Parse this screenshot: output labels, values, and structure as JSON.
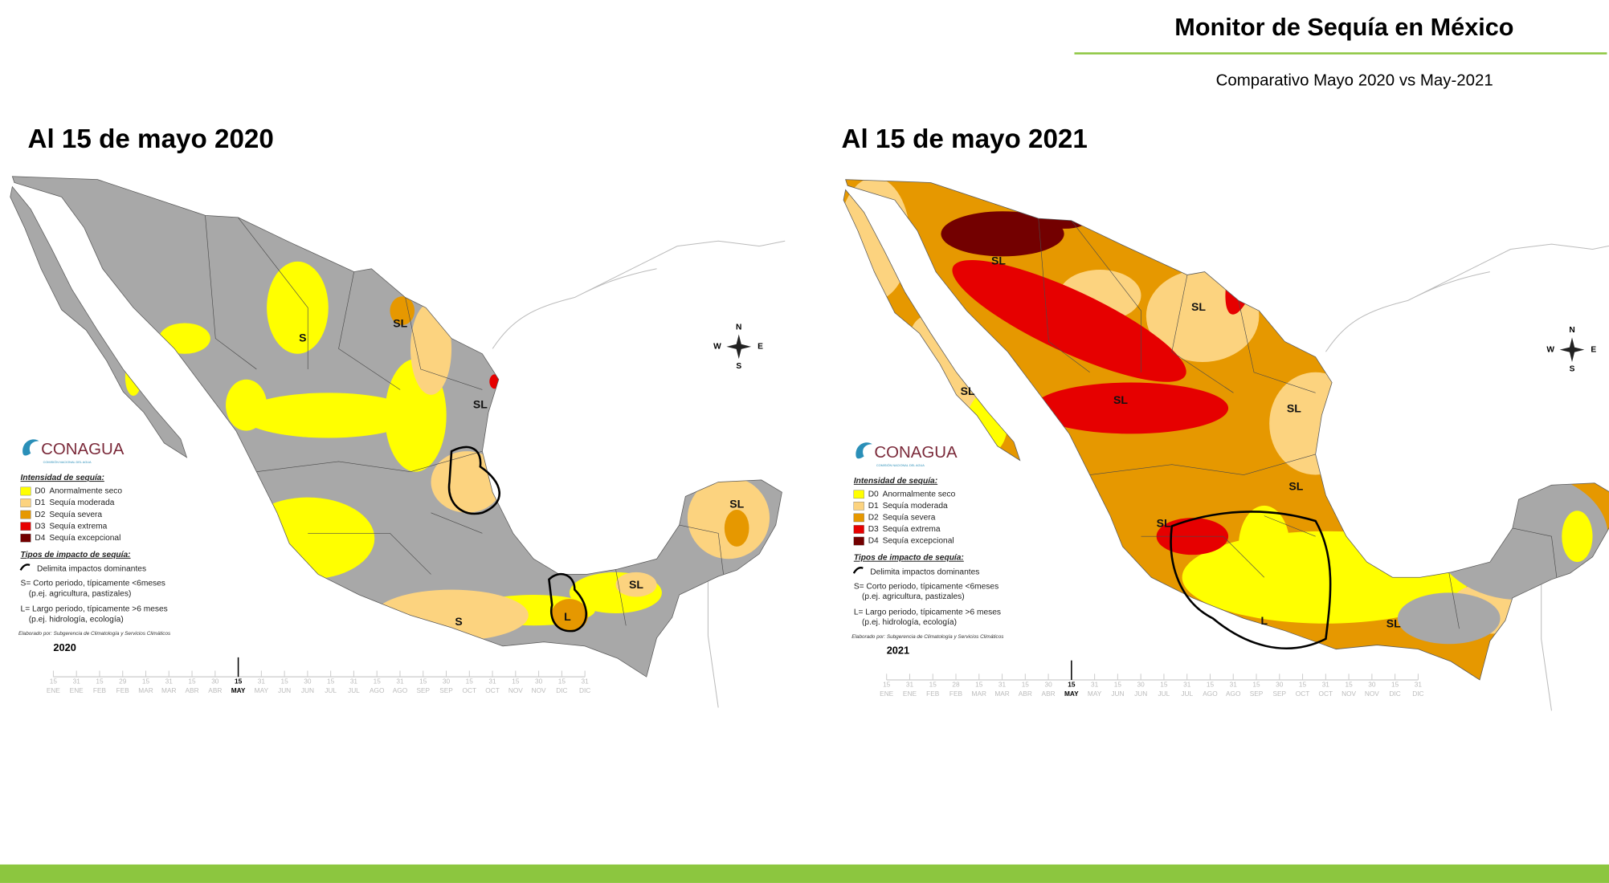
{
  "header": {
    "title": "Monitor de Sequía en México",
    "subtitle": "Comparativo Mayo 2020 vs May-2021"
  },
  "legend": {
    "logo": "CONAGUA",
    "logo_tagline": "COMISIÓN NACIONAL DEL AGUA",
    "intensity_title": "Intensidad de sequía:",
    "levels": [
      {
        "code": "D0",
        "label": "Anormalmente seco",
        "color": "#ffff00"
      },
      {
        "code": "D1",
        "label": "Sequía moderada",
        "color": "#fcd37f"
      },
      {
        "code": "D2",
        "label": "Sequía severa",
        "color": "#e69800"
      },
      {
        "code": "D3",
        "label": "Sequía extrema",
        "color": "#e60000"
      },
      {
        "code": "D4",
        "label": "Sequía excepcional",
        "color": "#730000"
      }
    ],
    "impact_title": "Tipos de impacto de sequía:",
    "impact_items": [
      "Delimita impactos dominantes",
      "S= Corto periodo, típicamente <6meses",
      "(p.ej. agricultura, pastizales)",
      "L= Largo periodo, típicamente >6 meses",
      "(p.ej. hidrología, ecología)"
    ],
    "credit": "Elaborado por: Subgerencia de Climatología y Servicios Climáticos"
  },
  "compass": {
    "north": "N",
    "west": "W",
    "east": "E",
    "south": "S"
  },
  "panels": [
    {
      "heading": "Al 15 de mayo 2020",
      "year": "2020",
      "region_labels": [
        "S",
        "SL",
        "SL",
        "S",
        "L",
        "SL",
        "SL"
      ],
      "timeline": [
        {
          "day": "15",
          "month": "ENE"
        },
        {
          "day": "31",
          "month": "ENE"
        },
        {
          "day": "15",
          "month": "FEB"
        },
        {
          "day": "29",
          "month": "FEB"
        },
        {
          "day": "15",
          "month": "MAR"
        },
        {
          "day": "31",
          "month": "MAR"
        },
        {
          "day": "15",
          "month": "ABR"
        },
        {
          "day": "30",
          "month": "ABR"
        },
        {
          "day": "15",
          "month": "MAY",
          "highlight": true
        },
        {
          "day": "31",
          "month": "MAY"
        },
        {
          "day": "15",
          "month": "JUN"
        },
        {
          "day": "30",
          "month": "JUN"
        },
        {
          "day": "15",
          "month": "JUL"
        },
        {
          "day": "31",
          "month": "JUL"
        },
        {
          "day": "15",
          "month": "AGO"
        },
        {
          "day": "31",
          "month": "AGO"
        },
        {
          "day": "15",
          "month": "SEP"
        },
        {
          "day": "30",
          "month": "SEP"
        },
        {
          "day": "15",
          "month": "OCT"
        },
        {
          "day": "31",
          "month": "OCT"
        },
        {
          "day": "15",
          "month": "NOV"
        },
        {
          "day": "30",
          "month": "NOV"
        },
        {
          "day": "15",
          "month": "DIC"
        },
        {
          "day": "31",
          "month": "DIC"
        }
      ]
    },
    {
      "heading": "Al 15 de mayo 2021",
      "year": "2021",
      "region_labels": [
        "SL",
        "SL",
        "SL",
        "SL",
        "SL",
        "SL",
        "SL",
        "L",
        "SL"
      ],
      "timeline": [
        {
          "day": "15",
          "month": "ENE"
        },
        {
          "day": "31",
          "month": "ENE"
        },
        {
          "day": "15",
          "month": "FEB"
        },
        {
          "day": "28",
          "month": "FEB"
        },
        {
          "day": "15",
          "month": "MAR"
        },
        {
          "day": "31",
          "month": "MAR"
        },
        {
          "day": "15",
          "month": "ABR"
        },
        {
          "day": "30",
          "month": "ABR"
        },
        {
          "day": "15",
          "month": "MAY",
          "highlight": true
        },
        {
          "day": "31",
          "month": "MAY"
        },
        {
          "day": "15",
          "month": "JUN"
        },
        {
          "day": "30",
          "month": "JUN"
        },
        {
          "day": "15",
          "month": "JUL"
        },
        {
          "day": "31",
          "month": "JUL"
        },
        {
          "day": "15",
          "month": "AGO"
        },
        {
          "day": "31",
          "month": "AGO"
        },
        {
          "day": "15",
          "month": "SEP"
        },
        {
          "day": "30",
          "month": "SEP"
        },
        {
          "day": "15",
          "month": "OCT"
        },
        {
          "day": "31",
          "month": "OCT"
        },
        {
          "day": "15",
          "month": "NOV"
        },
        {
          "day": "30",
          "month": "NOV"
        },
        {
          "day": "15",
          "month": "DIC"
        },
        {
          "day": "31",
          "month": "DIC"
        }
      ]
    }
  ]
}
